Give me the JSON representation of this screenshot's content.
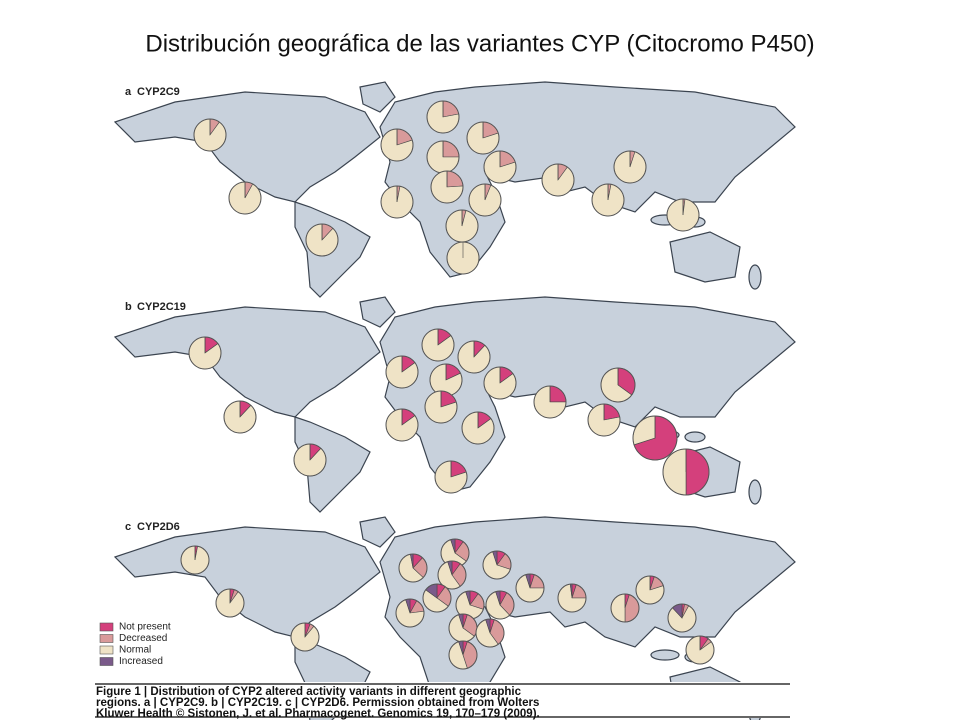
{
  "title": "Distribución geográfica de las variantes CYP (Citocromo P450)",
  "legend": [
    {
      "label": "Not present",
      "color": "#d4407c"
    },
    {
      "label": "Decreased",
      "color": "#d99a9a"
    },
    {
      "label": "Normal",
      "color": "#efe3c6"
    },
    {
      "label": "Increased",
      "color": "#7a5a8a"
    }
  ],
  "panels": [
    {
      "letter": "a",
      "gene": "CYP2C9",
      "pies": [
        [
          0,
          10,
          90,
          0
        ],
        [
          0,
          8,
          92,
          0
        ],
        [
          0,
          12,
          88,
          0
        ],
        [
          0,
          20,
          80,
          0
        ],
        [
          0,
          22,
          78,
          0
        ],
        [
          0,
          20,
          80,
          0
        ],
        [
          0,
          25,
          75,
          0
        ],
        [
          0,
          20,
          80,
          0
        ],
        [
          0,
          24,
          76,
          0
        ],
        [
          0,
          6,
          94,
          0
        ],
        [
          0,
          3,
          97,
          0
        ],
        [
          0,
          4,
          96,
          0
        ],
        [
          0,
          0,
          100,
          0
        ],
        [
          0,
          10,
          90,
          0
        ],
        [
          0,
          5,
          95,
          0
        ],
        [
          0,
          3,
          97,
          0
        ],
        [
          0,
          2,
          98,
          0
        ]
      ]
    },
    {
      "letter": "b",
      "gene": "CYP2C19",
      "pies": [
        [
          15,
          0,
          85,
          0
        ],
        [
          12,
          0,
          88,
          0
        ],
        [
          12,
          0,
          88,
          0
        ],
        [
          15,
          0,
          85,
          0
        ],
        [
          12,
          0,
          88,
          0
        ],
        [
          15,
          0,
          85,
          0
        ],
        [
          18,
          0,
          82,
          0
        ],
        [
          15,
          0,
          85,
          0
        ],
        [
          25,
          0,
          75,
          0
        ],
        [
          35,
          0,
          65,
          0
        ],
        [
          20,
          0,
          80,
          0
        ],
        [
          15,
          0,
          85,
          0
        ],
        [
          15,
          0,
          85,
          0
        ],
        [
          22,
          0,
          78,
          0
        ],
        [
          70,
          0,
          30,
          0
        ],
        [
          20,
          0,
          80,
          0
        ],
        [
          50,
          0,
          50,
          0
        ]
      ]
    },
    {
      "letter": "c",
      "gene": "CYP2D6",
      "pies": [
        [
          3,
          0,
          97,
          0
        ],
        [
          5,
          5,
          90,
          0
        ],
        [
          6,
          5,
          89,
          0
        ],
        [
          10,
          25,
          60,
          5
        ],
        [
          10,
          30,
          55,
          5
        ],
        [
          12,
          25,
          60,
          3
        ],
        [
          10,
          20,
          65,
          5
        ],
        [
          5,
          20,
          70,
          5
        ],
        [
          5,
          20,
          73,
          2
        ],
        [
          5,
          45,
          50,
          0
        ],
        [
          5,
          15,
          80,
          0
        ],
        [
          3,
          5,
          80,
          12
        ],
        [
          10,
          5,
          85,
          0
        ],
        [
          8,
          15,
          72,
          5
        ],
        [
          10,
          25,
          50,
          15
        ],
        [
          10,
          20,
          65,
          5
        ],
        [
          8,
          30,
          57,
          5
        ],
        [
          5,
          30,
          60,
          5
        ],
        [
          5,
          35,
          55,
          5
        ],
        [
          5,
          40,
          50,
          5
        ]
      ]
    }
  ],
  "caption": [
    "Figure 1 | Distribution of CYP2 altered activity variants in different geographic",
    "regions. a | CYP2C9. b | CYP2C19. c | CYP2D6. Permission obtained from Wolters",
    "Kluwer Health © Sistonen, J. et al. Pharmacogenet. Genomics 19, 170–179 (2009)."
  ]
}
